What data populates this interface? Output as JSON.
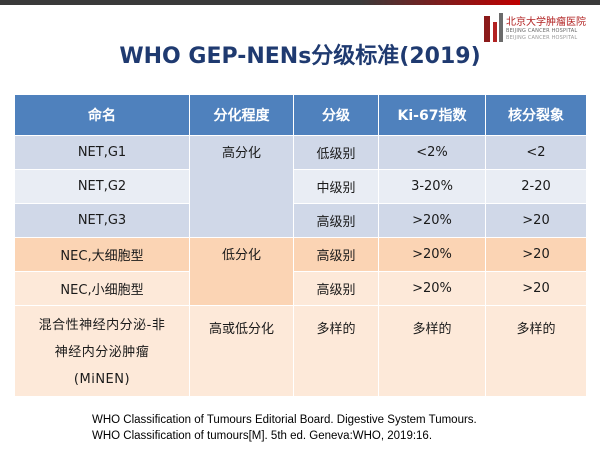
{
  "logo": {
    "name_cn": "北京大学肿瘤医院",
    "name_en": "BEIJING CANCER HOSPITAL",
    "name_en2": "BEIJING CANCER HOSPITAL"
  },
  "title": "WHO GEP-NENs分级标准(2019)",
  "table": {
    "headers": [
      "命名",
      "分化程度",
      "分级",
      "Ki-67指数",
      "核分裂象"
    ],
    "net_differentiation": "高分化",
    "nec_differentiation": "低分化",
    "rows": [
      {
        "name": "NET,G1",
        "grade": "低级别",
        "ki67": "<2%",
        "mitosis": "<2"
      },
      {
        "name": "NET,G2",
        "grade": "中级别",
        "ki67": "3-20%",
        "mitosis": "2-20"
      },
      {
        "name": "NET,G3",
        "grade": "高级别",
        "ki67": ">20%",
        "mitosis": ">20"
      },
      {
        "name": "NEC,大细胞型",
        "grade": "高级别",
        "ki67": ">20%",
        "mitosis": ">20"
      },
      {
        "name": "NEC,小细胞型",
        "grade": "高级别",
        "ki67": ">20%",
        "mitosis": ">20"
      }
    ],
    "minen": {
      "name_line1": "混合性神经内分泌-非",
      "name_line2": "神经内分泌肿瘤",
      "name_line3": "(MiNEN)",
      "differentiation": "高或低分化",
      "grade": "多样的",
      "ki67": "多样的",
      "mitosis": "多样的"
    }
  },
  "citation": {
    "line1": "WHO Classification of Tumours Editorial Board. Digestive System Tumours.",
    "line2": "WHO Classification of tumours[M]. 5th ed. Geneva:WHO, 2019:16."
  }
}
